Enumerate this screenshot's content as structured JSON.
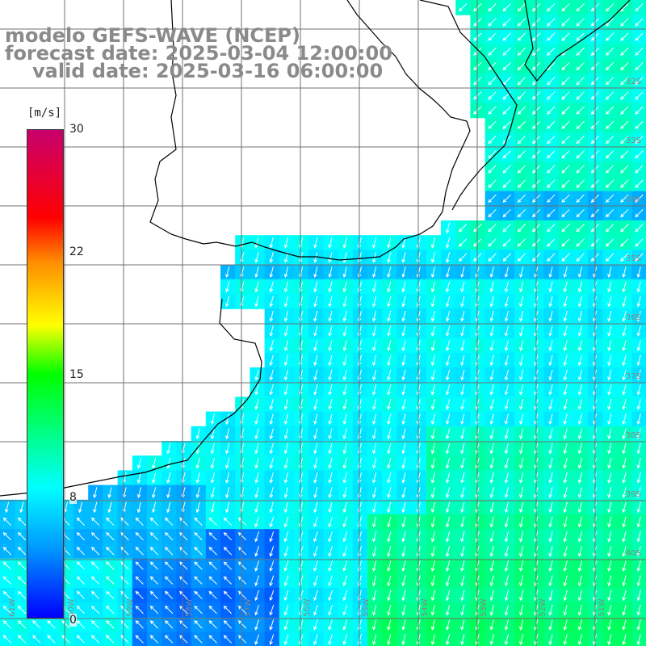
{
  "title": {
    "line1": "modelo GEFS-WAVE (NCEP)",
    "line2": "forecast date: 2025-03-04 12:00:00",
    "line3": "valid date: 2025-03-16 06:00:00"
  },
  "colorbar": {
    "unit": "[m/s]",
    "ticks": [
      "30",
      "22",
      "15",
      "8",
      "0"
    ],
    "range": [
      0,
      30
    ],
    "colors": [
      "#0000ff",
      "#0096ff",
      "#00ffff",
      "#00ff00",
      "#ffff00",
      "#ff8c00",
      "#ff0000",
      "#c8006e"
    ]
  },
  "map": {
    "land_color": "#ffffff",
    "grid_color": "#707070",
    "coastline_color": "#000000",
    "arrow_color": "#ffffff",
    "lat_labels": [
      "32S",
      "33S",
      "34S",
      "35S",
      "36S",
      "37S",
      "38S",
      "39S",
      "40S"
    ],
    "lon_labels": [
      "61W",
      "60W",
      "59W",
      "58W",
      "57W",
      "56W",
      "55W",
      "54W",
      "53W",
      "52W",
      "51W"
    ]
  }
}
